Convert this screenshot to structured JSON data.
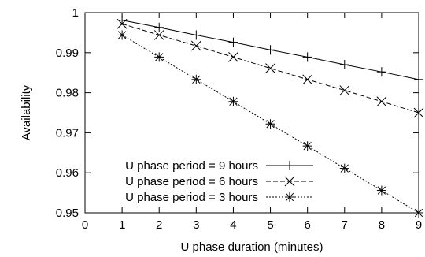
{
  "chart_data": {
    "type": "line",
    "title": "",
    "xlabel": "U phase duration (minutes)",
    "ylabel": "Availability",
    "xlim": [
      0,
      9
    ],
    "ylim": [
      0.95,
      1
    ],
    "x_ticks": [
      "0",
      "1",
      "2",
      "3",
      "4",
      "5",
      "6",
      "7",
      "8",
      "9"
    ],
    "y_ticks": [
      "0.95",
      "0.96",
      "0.97",
      "0.98",
      "0.99",
      "1"
    ],
    "grid": false,
    "legend_position": "bottom-left",
    "x": [
      1,
      2,
      3,
      4,
      5,
      6,
      7,
      8,
      9
    ],
    "series": [
      {
        "name": "U phase period = 9 hours",
        "marker": "plus",
        "dash": "solid",
        "values": [
          0.9981,
          0.9963,
          0.9944,
          0.9926,
          0.9907,
          0.9889,
          0.987,
          0.9852,
          0.9833
        ]
      },
      {
        "name": "U phase period = 6 hours",
        "marker": "cross",
        "dash": "dashed",
        "values": [
          0.9972,
          0.9944,
          0.9917,
          0.9889,
          0.9861,
          0.9833,
          0.9806,
          0.9778,
          0.975
        ]
      },
      {
        "name": "U phase period = 3 hours",
        "marker": "star",
        "dash": "dotted",
        "values": [
          0.9944,
          0.9889,
          0.9833,
          0.9778,
          0.9722,
          0.9667,
          0.9611,
          0.9556,
          0.95
        ]
      }
    ]
  }
}
